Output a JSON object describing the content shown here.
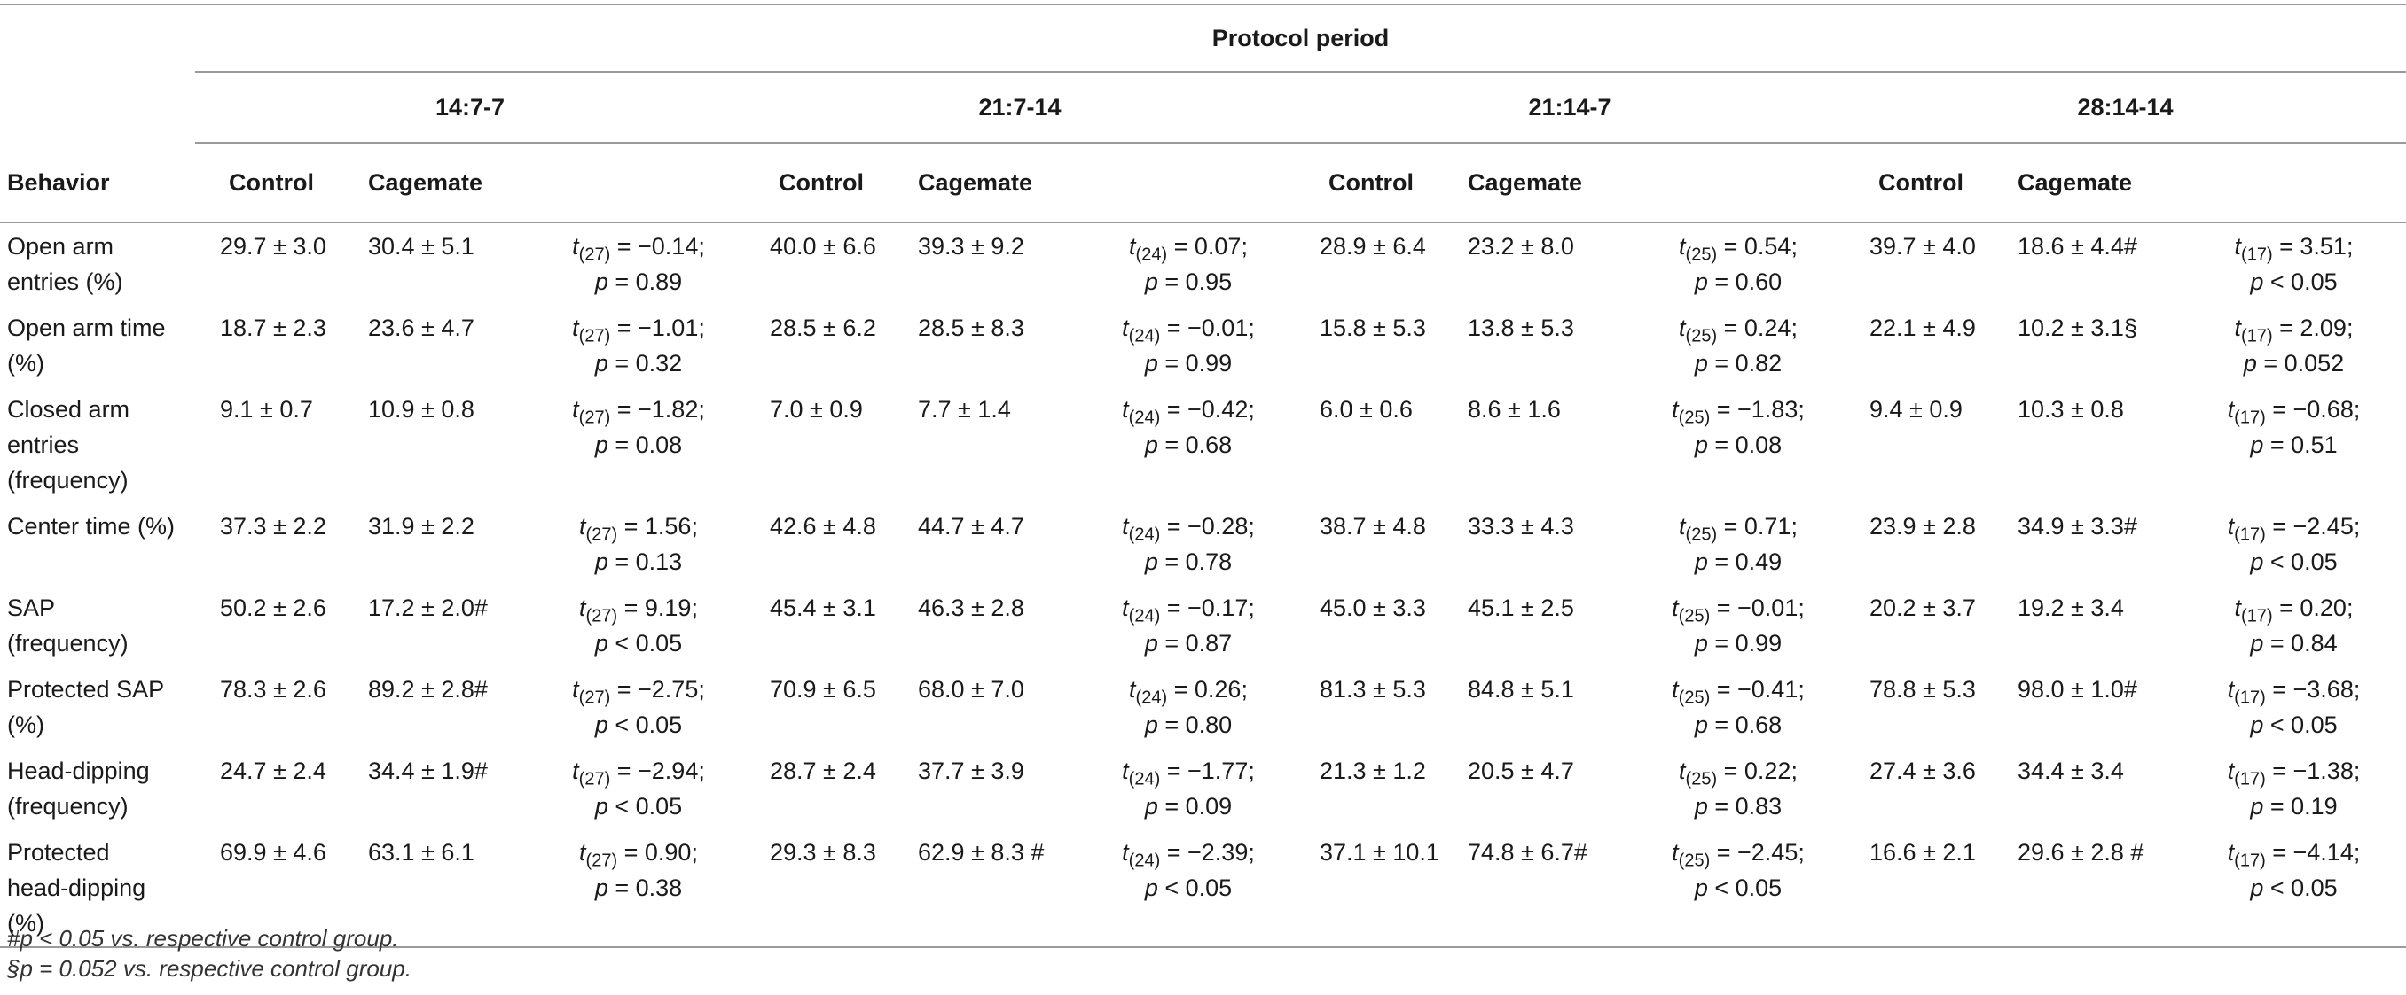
{
  "table": {
    "title": "Protocol period",
    "behavior_header": "Behavior",
    "groups": [
      {
        "label": "14:7-7",
        "control": "Control",
        "cagemate": "Cagemate"
      },
      {
        "label": "21:7-14",
        "control": "Control",
        "cagemate": "Cagemate"
      },
      {
        "label": "21:14-7",
        "control": "Control",
        "cagemate": "Cagemate"
      },
      {
        "label": "28:14-14",
        "control": "Control",
        "cagemate": "Cagemate"
      }
    ],
    "rows": [
      {
        "behavior": [
          "Open arm",
          "entries (%)"
        ],
        "cells": [
          {
            "control": "29.7 ± 3.0",
            "cagemate": "30.4 ± 5.1",
            "df": "(27)",
            "t": " = −0.14;",
            "p": " = 0.89",
            "p_op": "p"
          },
          {
            "control": "40.0 ± 6.6",
            "cagemate": "39.3 ± 9.2",
            "df": "(24)",
            "t": " = 0.07;",
            "p": " = 0.95",
            "p_op": "p"
          },
          {
            "control": "28.9 ± 6.4",
            "cagemate": "23.2 ± 8.0",
            "df": "(25)",
            "t": " = 0.54;",
            "p": " = 0.60",
            "p_op": "p"
          },
          {
            "control": "39.7 ± 4.0",
            "cagemate": "18.6 ± 4.4#",
            "df": "(17)",
            "t": " = 3.51;",
            "p": " < 0.05",
            "p_op": "p"
          }
        ]
      },
      {
        "behavior": [
          "Open arm time",
          "(%)"
        ],
        "cells": [
          {
            "control": "18.7 ± 2.3",
            "cagemate": "23.6 ± 4.7",
            "df": "(27)",
            "t": " = −1.01;",
            "p": " = 0.32",
            "p_op": "p"
          },
          {
            "control": "28.5 ± 6.2",
            "cagemate": "28.5 ± 8.3",
            "df": "(24)",
            "t": " = −0.01;",
            "p": " = 0.99",
            "p_op": "p"
          },
          {
            "control": "15.8 ± 5.3",
            "cagemate": "13.8 ± 5.3",
            "df": "(25)",
            "t": " = 0.24;",
            "p": " = 0.82",
            "p_op": "p"
          },
          {
            "control": "22.1 ± 4.9",
            "cagemate": "10.2 ± 3.1§",
            "df": "(17)",
            "t": " = 2.09;",
            "p": " = 0.052",
            "p_op": "p"
          }
        ]
      },
      {
        "behavior": [
          "Closed arm",
          "entries",
          "(frequency)"
        ],
        "cells": [
          {
            "control": "9.1 ± 0.7",
            "cagemate": "10.9 ± 0.8",
            "df": "(27)",
            "t": " = −1.82;",
            "p": " = 0.08",
            "p_op": "p"
          },
          {
            "control": "7.0 ± 0.9",
            "cagemate": "7.7 ± 1.4",
            "df": "(24)",
            "t": " = −0.42;",
            "p": " = 0.68",
            "p_op": "p"
          },
          {
            "control": "6.0 ± 0.6",
            "cagemate": "8.6 ± 1.6",
            "df": "(25)",
            "t": " = −1.83;",
            "p": " = 0.08",
            "p_op": "p"
          },
          {
            "control": "9.4 ± 0.9",
            "cagemate": "10.3 ± 0.8",
            "df": "(17)",
            "t": " = −0.68;",
            "p": " = 0.51",
            "p_op": "p"
          }
        ]
      },
      {
        "behavior": [
          "Center time (%)"
        ],
        "cells": [
          {
            "control": "37.3 ± 2.2",
            "cagemate": "31.9 ± 2.2",
            "df": "(27)",
            "t": " = 1.56;",
            "p": " = 0.13",
            "p_op": "p"
          },
          {
            "control": "42.6 ± 4.8",
            "cagemate": "44.7 ± 4.7",
            "df": "(24)",
            "t": " = −0.28;",
            "p": " = 0.78",
            "p_op": "p"
          },
          {
            "control": "38.7 ± 4.8",
            "cagemate": "33.3 ± 4.3",
            "df": "(25)",
            "t": " = 0.71;",
            "p": " = 0.49",
            "p_op": "p"
          },
          {
            "control": "23.9 ± 2.8",
            "cagemate": "34.9 ± 3.3#",
            "df": "(17)",
            "t": " = −2.45;",
            "p": " < 0.05",
            "p_op": "p"
          }
        ]
      },
      {
        "behavior": [
          "SAP",
          "(frequency)"
        ],
        "cells": [
          {
            "control": "50.2 ± 2.6",
            "cagemate": "17.2 ± 2.0#",
            "df": "(27)",
            "t": " = 9.19;",
            "p": " < 0.05",
            "p_op": "p"
          },
          {
            "control": "45.4 ± 3.1",
            "cagemate": "46.3 ± 2.8",
            "df": "(24)",
            "t": " = −0.17;",
            "p": " = 0.87",
            "p_op": "p"
          },
          {
            "control": "45.0 ± 3.3",
            "cagemate": "45.1 ± 2.5",
            "df": "(25)",
            "t": " = −0.01;",
            "p": " = 0.99",
            "p_op": "p"
          },
          {
            "control": "20.2 ± 3.7",
            "cagemate": "19.2 ± 3.4",
            "df": "(17)",
            "t": " = 0.20;",
            "p": " = 0.84",
            "p_op": "p"
          }
        ]
      },
      {
        "behavior": [
          "Protected SAP",
          "(%)"
        ],
        "cells": [
          {
            "control": "78.3 ± 2.6",
            "cagemate": "89.2 ± 2.8#",
            "df": "(27)",
            "t": " = −2.75;",
            "p": " < 0.05",
            "p_op": "p"
          },
          {
            "control": "70.9 ± 6.5",
            "cagemate": "68.0 ± 7.0",
            "df": "(24)",
            "t": " = 0.26;",
            "p": " = 0.80",
            "p_op": "p"
          },
          {
            "control": "81.3 ± 5.3",
            "cagemate": "84.8 ± 5.1",
            "df": "(25)",
            "t": " = −0.41;",
            "p": " = 0.68",
            "p_op": "p"
          },
          {
            "control": "78.8 ± 5.3",
            "cagemate": "98.0 ± 1.0#",
            "df": "(17)",
            "t": " = −3.68;",
            "p": " < 0.05",
            "p_op": "p"
          }
        ]
      },
      {
        "behavior": [
          "Head-dipping",
          "(frequency)"
        ],
        "cells": [
          {
            "control": "24.7 ± 2.4",
            "cagemate": "34.4 ± 1.9#",
            "df": "(27)",
            "t": " = −2.94;",
            "p": " < 0.05",
            "p_op": "p"
          },
          {
            "control": "28.7 ± 2.4",
            "cagemate": "37.7 ± 3.9",
            "df": "(24)",
            "t": " = −1.77;",
            "p": " = 0.09",
            "p_op": "p"
          },
          {
            "control": "21.3 ± 1.2",
            "cagemate": "20.5 ± 4.7",
            "df": "(25)",
            "t": " = 0.22;",
            "p": " = 0.83",
            "p_op": "p"
          },
          {
            "control": "27.4 ± 3.6",
            "cagemate": "34.4 ± 3.4",
            "df": "(17)",
            "t": " = −1.38;",
            "p": " = 0.19",
            "p_op": "p"
          }
        ]
      },
      {
        "behavior": [
          "Protected",
          "head-dipping",
          "(%)"
        ],
        "cells": [
          {
            "control": "69.9 ± 4.6",
            "cagemate": "63.1 ± 6.1",
            "df": "(27)",
            "t": " = 0.90;",
            "p": " = 0.38",
            "p_op": "p"
          },
          {
            "control": "29.3 ± 8.3",
            "cagemate": "62.9 ± 8.3 #",
            "df": "(24)",
            "t": " = −2.39;",
            "p": " < 0.05",
            "p_op": "p"
          },
          {
            "control": "37.1 ± 10.1",
            "cagemate": "74.8 ± 6.7#",
            "df": "(25)",
            "t": " = −2.45;",
            "p": " < 0.05",
            "p_op": "p"
          },
          {
            "control": "16.6 ± 2.1",
            "cagemate": "29.6 ± 2.8 #",
            "df": "(17)",
            "t": " = −4.14;",
            "p": " < 0.05",
            "p_op": "p"
          }
        ]
      }
    ],
    "t_symbol": "t",
    "footnotes": [
      "#p < 0.05 vs. respective control group.",
      "§p = 0.052 vs. respective control group."
    ]
  }
}
